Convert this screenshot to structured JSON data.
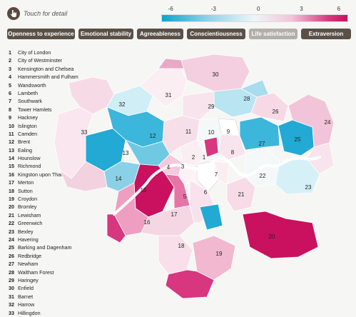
{
  "hint": {
    "text": "Touch for detail",
    "icon": "hand-pointer-icon"
  },
  "scale": {
    "ticks": [
      "-6",
      "-3",
      "0",
      "3",
      "6"
    ],
    "colors": [
      "#0aa6cf",
      "#8fd3e8",
      "#eef6f8",
      "#f2c4d9",
      "#c9115f"
    ]
  },
  "buttons": [
    {
      "label": "Openness to experience",
      "active": false
    },
    {
      "label": "Emotional stability",
      "active": false
    },
    {
      "label": "Agreeableness",
      "active": false
    },
    {
      "label": "Conscientiousness",
      "active": false
    },
    {
      "label": "Life satisfaction",
      "active": true
    },
    {
      "label": "Extraversion",
      "active": false
    }
  ],
  "boroughs": [
    {
      "num": "1",
      "name": "City of London"
    },
    {
      "num": "2",
      "name": "City of Westminster"
    },
    {
      "num": "3",
      "name": "Kensington and Chelsea"
    },
    {
      "num": "4",
      "name": "Hammersmith and Fulham"
    },
    {
      "num": "5",
      "name": "Wandsworth"
    },
    {
      "num": "6",
      "name": "Lambeth"
    },
    {
      "num": "7",
      "name": "Southwark"
    },
    {
      "num": "8",
      "name": "Tower Hamlets"
    },
    {
      "num": "9",
      "name": "Hackney"
    },
    {
      "num": "10",
      "name": "Islington"
    },
    {
      "num": "11",
      "name": "Camden"
    },
    {
      "num": "12",
      "name": "Brent"
    },
    {
      "num": "13",
      "name": "Ealing"
    },
    {
      "num": "14",
      "name": "Hounslow"
    },
    {
      "num": "15",
      "name": "Richmond"
    },
    {
      "num": "16",
      "name": "Kingston upon Thames"
    },
    {
      "num": "17",
      "name": "Merton"
    },
    {
      "num": "18",
      "name": "Sutton"
    },
    {
      "num": "19",
      "name": "Croydon"
    },
    {
      "num": "20",
      "name": "Bromley"
    },
    {
      "num": "21",
      "name": "Lewisham"
    },
    {
      "num": "22",
      "name": "Greenwich"
    },
    {
      "num": "23",
      "name": "Bexley"
    },
    {
      "num": "24",
      "name": "Havering"
    },
    {
      "num": "25",
      "name": "Barking and Dagenham"
    },
    {
      "num": "26",
      "name": "Redbridge"
    },
    {
      "num": "27",
      "name": "Newham"
    },
    {
      "num": "28",
      "name": "Waltham Forest"
    },
    {
      "num": "29",
      "name": "Haringey"
    },
    {
      "num": "30",
      "name": "Enfield"
    },
    {
      "num": "31",
      "name": "Barnet"
    },
    {
      "num": "32",
      "name": "Harrow"
    },
    {
      "num": "33",
      "name": "Hillingdon"
    }
  ],
  "map_labels": [
    "1",
    "2",
    "3",
    "4",
    "5",
    "6",
    "7",
    "8",
    "9",
    "10",
    "11",
    "12",
    "13",
    "14",
    "15",
    "16",
    "17",
    "18",
    "19",
    "20",
    "21",
    "22",
    "23",
    "24",
    "25",
    "26",
    "27",
    "28",
    "29",
    "30",
    "31",
    "32",
    "33"
  ]
}
